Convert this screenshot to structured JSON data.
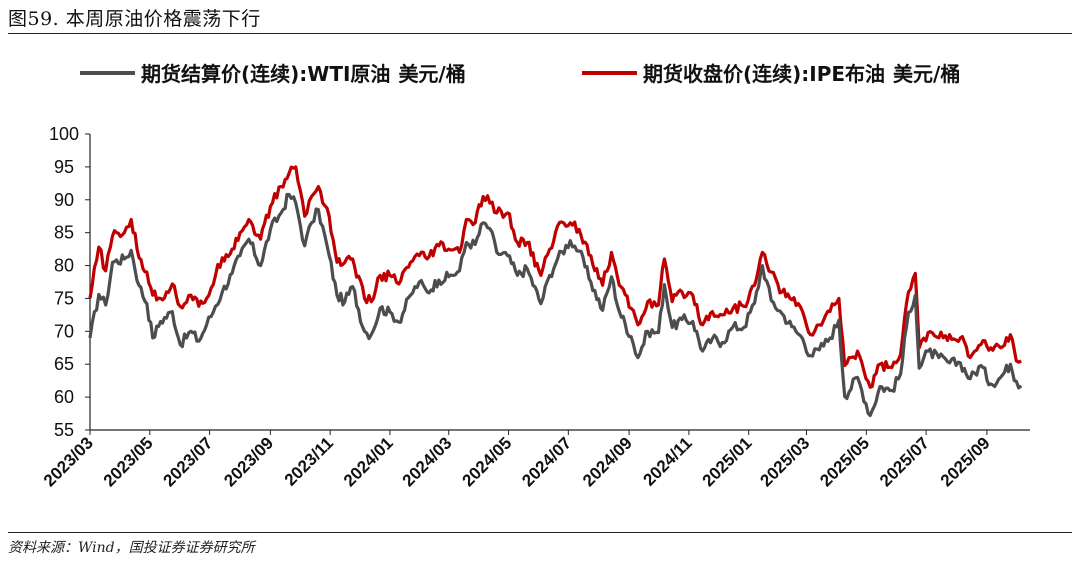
{
  "figure": {
    "title": "图59. 本周原油价格震荡下行",
    "source": "资料来源：Wind，国投证券证券研究所"
  },
  "chart_data": {
    "type": "line",
    "title": "本周原油价格震荡下行",
    "xlabel": "",
    "ylabel": "",
    "ylim": [
      55,
      100
    ],
    "yticks": [
      "100",
      "95",
      "90",
      "85",
      "80",
      "75",
      "70",
      "65",
      "60",
      "55"
    ],
    "x_range": [
      "2023/03",
      "2025/09"
    ],
    "x_tick_labels": [
      "2023/03",
      "2023/05",
      "2023/07",
      "2023/09",
      "2023/11",
      "2024/01",
      "2024/03",
      "2024/05",
      "2024/07",
      "2024/09",
      "2024/11",
      "2025/01",
      "2025/03",
      "2025/05",
      "2025/07",
      "2025/09"
    ],
    "x": [
      "2023-03-01",
      "2023-03-10",
      "2023-03-17",
      "2023-03-24",
      "2023-04-05",
      "2023-04-12",
      "2023-04-20",
      "2023-04-28",
      "2023-05-04",
      "2023-05-12",
      "2023-05-24",
      "2023-06-01",
      "2023-06-12",
      "2023-06-20",
      "2023-06-28",
      "2023-07-07",
      "2023-07-14",
      "2023-07-24",
      "2023-08-01",
      "2023-08-10",
      "2023-08-22",
      "2023-09-01",
      "2023-09-12",
      "2023-09-20",
      "2023-09-27",
      "2023-10-06",
      "2023-10-13",
      "2023-10-20",
      "2023-10-31",
      "2023-11-08",
      "2023-11-16",
      "2023-11-24",
      "2023-12-06",
      "2023-12-13",
      "2023-12-22",
      "2024-01-03",
      "2024-01-10",
      "2024-01-22",
      "2024-01-31",
      "2024-02-08",
      "2024-02-20",
      "2024-03-01",
      "2024-03-12",
      "2024-03-19",
      "2024-03-28",
      "2024-04-05",
      "2024-04-12",
      "2024-04-19",
      "2024-04-30",
      "2024-05-10",
      "2024-05-20",
      "2024-06-03",
      "2024-06-12",
      "2024-06-20",
      "2024-07-03",
      "2024-07-12",
      "2024-07-24",
      "2024-08-05",
      "2024-08-14",
      "2024-08-22",
      "2024-09-03",
      "2024-09-10",
      "2024-09-20",
      "2024-10-01",
      "2024-10-07",
      "2024-10-15",
      "2024-10-25",
      "2024-11-05",
      "2024-11-15",
      "2024-11-25",
      "2024-12-05",
      "2024-12-16",
      "2024-12-27",
      "2025-01-07",
      "2025-01-15",
      "2025-01-24",
      "2025-02-04",
      "2025-02-14",
      "2025-02-25",
      "2025-03-05",
      "2025-03-14",
      "2025-03-25",
      "2025-04-03",
      "2025-04-09",
      "2025-04-22",
      "2025-05-05",
      "2025-05-15",
      "2025-05-27",
      "2025-06-05",
      "2025-06-13",
      "2025-06-20",
      "2025-06-24",
      "2025-07-03",
      "2025-07-14",
      "2025-07-25",
      "2025-08-05",
      "2025-08-15",
      "2025-08-26",
      "2025-09-05",
      "2025-09-15",
      "2025-09-25",
      "2025-10-01",
      "2025-10-06"
    ],
    "series": [
      {
        "name": "期货结算价(连续):WTI原油",
        "unit": "美元/桶",
        "color": "#4d4d4f",
        "values": [
          69.0,
          75.6,
          74.0,
          80.5,
          81.0,
          82.3,
          77.0,
          74.2,
          69.0,
          71.5,
          73.0,
          68.0,
          70.0,
          68.5,
          71.0,
          73.8,
          76.0,
          78.8,
          81.5,
          84.0,
          80.0,
          85.5,
          88.0,
          90.8,
          89.5,
          83.0,
          86.5,
          88.5,
          81.5,
          75.5,
          74.5,
          76.8,
          70.0,
          69.5,
          73.5,
          72.7,
          71.4,
          75.5,
          77.5,
          76.0,
          77.8,
          78.3,
          79.2,
          83.5,
          83.2,
          86.5,
          85.6,
          82.0,
          81.5,
          78.5,
          79.5,
          74.2,
          78.5,
          81.0,
          83.8,
          82.2,
          77.5,
          73.2,
          78.3,
          73.0,
          69.2,
          66.0,
          70.0,
          69.8,
          77.1,
          70.6,
          71.8,
          71.5,
          67.0,
          68.9,
          68.3,
          70.7,
          70.6,
          74.3,
          80.0,
          74.7,
          72.7,
          70.7,
          68.9,
          66.3,
          67.2,
          69.0,
          71.7,
          60.1,
          63.0,
          57.2,
          61.6,
          61.0,
          63.5,
          72.9,
          75.5,
          64.4,
          67.0,
          66.0,
          65.2,
          65.2,
          62.8,
          64.8,
          62.0,
          63.0,
          65.0,
          62.4,
          61.7
        ]
      },
      {
        "name": "期货收盘价(连续):IPE布油",
        "unit": "美元/桶",
        "color": "#c00000",
        "values": [
          75.0,
          82.8,
          79.2,
          84.5,
          85.0,
          87.0,
          81.2,
          79.0,
          75.5,
          75.0,
          77.2,
          73.8,
          75.5,
          73.8,
          75.0,
          78.5,
          81.2,
          82.5,
          85.0,
          87.0,
          84.0,
          89.0,
          92.0,
          94.0,
          95.0,
          87.5,
          90.5,
          92.0,
          87.5,
          80.5,
          80.5,
          81.0,
          75.0,
          74.5,
          78.5,
          78.3,
          77.2,
          80.5,
          81.5,
          81.0,
          83.0,
          82.5,
          82.0,
          87.0,
          86.5,
          90.5,
          89.5,
          88.0,
          88.0,
          83.5,
          83.5,
          78.5,
          82.5,
          86.0,
          86.5,
          85.5,
          81.5,
          77.0,
          82.0,
          77.0,
          73.5,
          71.0,
          74.5,
          74.0,
          81.0,
          74.5,
          76.0,
          75.5,
          71.0,
          73.0,
          72.5,
          73.5,
          73.8,
          77.0,
          82.0,
          79.0,
          76.0,
          74.8,
          73.0,
          69.5,
          71.0,
          73.0,
          75.0,
          64.8,
          67.0,
          61.5,
          65.0,
          64.5,
          66.5,
          76.0,
          78.8,
          67.5,
          69.8,
          69.0,
          69.5,
          69.0,
          66.0,
          68.0,
          67.5,
          67.5,
          69.5,
          65.5,
          65.5
        ]
      }
    ],
    "grid": false,
    "legend": "top"
  },
  "colors": {
    "wti": "#4d4d4f",
    "ipe": "#c00000"
  }
}
